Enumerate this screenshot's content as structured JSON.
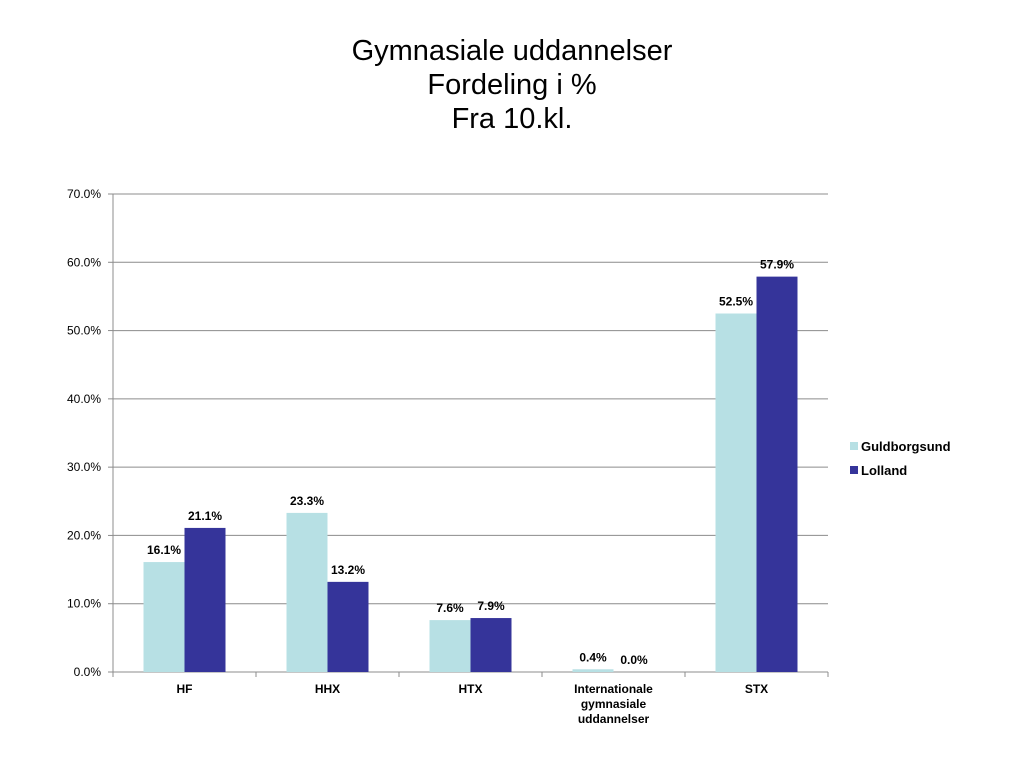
{
  "title": {
    "line1": "Gymnasiale uddannelser",
    "line2": "Fordeling i %",
    "line3": "Fra 10.kl."
  },
  "chart_data": {
    "type": "bar",
    "categories": [
      [
        "HF"
      ],
      [
        "HHX"
      ],
      [
        "HTX"
      ],
      [
        "Internationale",
        "gymnasiale",
        "uddannelser"
      ],
      [
        "STX"
      ]
    ],
    "series": [
      {
        "name": "Guldborgsund",
        "color": "#b7e0e4",
        "values": [
          16.1,
          23.3,
          7.6,
          0.4,
          52.5
        ],
        "labels": [
          "16.1%",
          "23.3%",
          "7.6%",
          "0.4%",
          "52.5%"
        ]
      },
      {
        "name": "Lolland",
        "color": "#35349a",
        "values": [
          21.1,
          13.2,
          7.9,
          0.0,
          57.9
        ],
        "labels": [
          "21.1%",
          "13.2%",
          "7.9%",
          "0.0%",
          "57.9%"
        ]
      }
    ],
    "ylim": [
      0,
      70
    ],
    "yticks": [
      "0.0%",
      "10.0%",
      "20.0%",
      "30.0%",
      "40.0%",
      "50.0%",
      "60.0%",
      "70.0%"
    ],
    "grid": true,
    "legend_position": "right"
  }
}
